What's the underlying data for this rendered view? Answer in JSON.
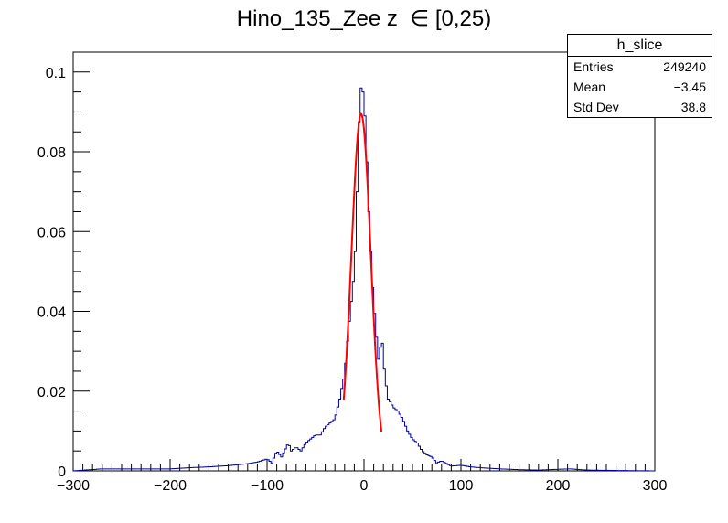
{
  "title": "Hino_135_Zee z  ∈ [0,25)",
  "stats_box": {
    "name": "h_slice",
    "rows": [
      {
        "label": "Entries",
        "value": "249240"
      },
      {
        "label": "Mean",
        "value": "−3.45"
      },
      {
        "label": "Std Dev",
        "value": "38.8"
      }
    ]
  },
  "chart_data": {
    "type": "line",
    "title": "Hino_135_Zee z  ∈ [0,25)",
    "xlabel": "",
    "ylabel": "",
    "xlim": [
      -300,
      300
    ],
    "ylim": [
      0,
      0.105
    ],
    "xticks": [
      -300,
      -200,
      -100,
      0,
      100,
      200,
      300
    ],
    "xtick_labels": [
      "−300",
      "−200",
      "−100",
      "0",
      "100",
      "200",
      "300"
    ],
    "yticks": [
      0,
      0.02,
      0.04,
      0.06,
      0.08,
      0.1
    ],
    "ytick_labels": [
      "0",
      "0.02",
      "0.04",
      "0.06",
      "0.08",
      "0.1"
    ],
    "grid": false,
    "series": [
      {
        "kind": "histogram",
        "color": "#000099",
        "bin_edges_range": [
          -300,
          300
        ],
        "bin_width": 2,
        "points": [
          [
            -300,
            0
          ],
          [
            -270,
            0.0005
          ],
          [
            -240,
            0.0005
          ],
          [
            -200,
            0.0005
          ],
          [
            -180,
            0.0008
          ],
          [
            -160,
            0.001
          ],
          [
            -140,
            0.0013
          ],
          [
            -120,
            0.0018
          ],
          [
            -110,
            0.0022
          ],
          [
            -100,
            0.003
          ],
          [
            -95,
            0.002
          ],
          [
            -90,
            0.005
          ],
          [
            -85,
            0.0035
          ],
          [
            -80,
            0.006
          ],
          [
            -78,
            0.007
          ],
          [
            -75,
            0.005
          ],
          [
            -70,
            0.006
          ],
          [
            -65,
            0.005
          ],
          [
            -60,
            0.007
          ],
          [
            -55,
            0.008
          ],
          [
            -50,
            0.009
          ],
          [
            -45,
            0.009
          ],
          [
            -40,
            0.011
          ],
          [
            -35,
            0.012
          ],
          [
            -30,
            0.013
          ],
          [
            -28,
            0.015
          ],
          [
            -25,
            0.018
          ],
          [
            -22,
            0.022
          ],
          [
            -20,
            0.024
          ],
          [
            -18,
            0.03
          ],
          [
            -16,
            0.035
          ],
          [
            -14,
            0.04
          ],
          [
            -12,
            0.045
          ],
          [
            -10,
            0.05
          ],
          [
            -8,
            0.06
          ],
          [
            -6,
            0.08
          ],
          [
            -4,
            0.095
          ],
          [
            -2,
            0.097
          ],
          [
            0,
            0.093
          ],
          [
            2,
            0.085
          ],
          [
            4,
            0.07
          ],
          [
            6,
            0.06
          ],
          [
            8,
            0.05
          ],
          [
            10,
            0.042
          ],
          [
            12,
            0.037
          ],
          [
            14,
            0.03
          ],
          [
            16,
            0.026
          ],
          [
            18,
            0.036
          ],
          [
            20,
            0.028
          ],
          [
            22,
            0.023
          ],
          [
            25,
            0.018
          ],
          [
            28,
            0.017
          ],
          [
            30,
            0.016
          ],
          [
            35,
            0.015
          ],
          [
            40,
            0.013
          ],
          [
            45,
            0.01
          ],
          [
            50,
            0.008
          ],
          [
            55,
            0.007
          ],
          [
            60,
            0.005
          ],
          [
            65,
            0.004
          ],
          [
            70,
            0.0035
          ],
          [
            75,
            0.002
          ],
          [
            80,
            0.0025
          ],
          [
            90,
            0.0012
          ],
          [
            100,
            0.0014
          ],
          [
            110,
            0.001
          ],
          [
            120,
            0.0008
          ],
          [
            140,
            0.0005
          ],
          [
            160,
            0.0003
          ],
          [
            180,
            0.0002
          ],
          [
            212,
            0.0005
          ],
          [
            230,
            0.0002
          ],
          [
            260,
            0.0001
          ],
          [
            300,
            0
          ]
        ]
      },
      {
        "kind": "fit",
        "color": "#ff0000",
        "function": "gaus",
        "constant": 0.0895,
        "mean": -3,
        "sigma": 10,
        "range": [
          -21,
          18
        ]
      }
    ]
  },
  "colors": {
    "histogram": "#000099",
    "fit": "#ff0000",
    "axis": "#000000"
  }
}
